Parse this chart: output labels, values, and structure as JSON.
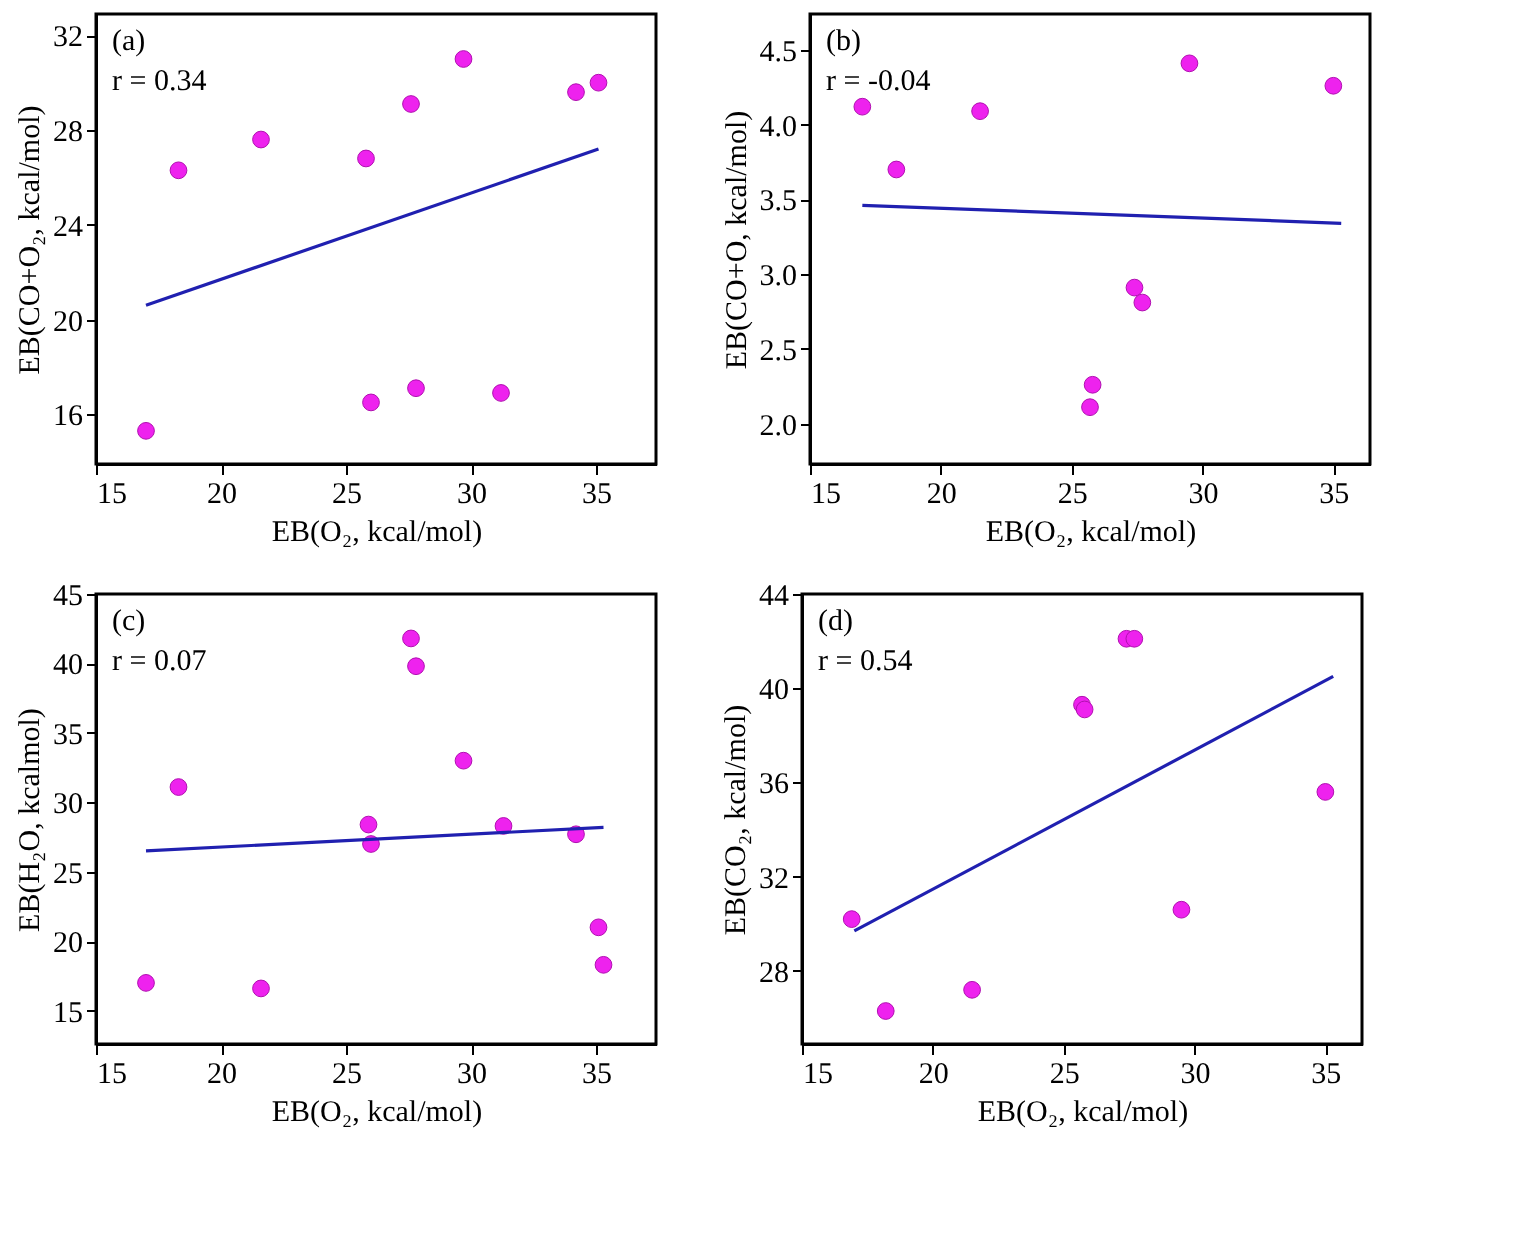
{
  "chart_data": [
    {
      "type": "scatter",
      "xlabel": "EB(O₂, kcal/mol)",
      "ylabel": "EB(CO+O₂, kcal/mol)",
      "annotations": [
        "(a)",
        "r = 0.34"
      ],
      "xlim": [
        15,
        37.4
      ],
      "ylim": [
        13.9,
        32.9
      ],
      "xticks": [
        15,
        20,
        25,
        30,
        35
      ],
      "yticks": [
        16,
        20,
        24,
        28,
        32
      ],
      "grid": false,
      "series": [
        {
          "marker": "circle",
          "color": "#ee22ee",
          "x": [
            17.0,
            18.3,
            21.6,
            25.8,
            27.6,
            29.7,
            34.2,
            35.1,
            26.0,
            27.8,
            31.2
          ],
          "values": [
            15.3,
            26.3,
            27.6,
            26.8,
            29.1,
            31.0,
            29.6,
            30.0,
            16.5,
            17.1,
            16.9
          ]
        },
        {
          "type": "line",
          "marker": "none",
          "color": "#2020b0",
          "x": [
            17.0,
            35.1
          ],
          "values": [
            20.6,
            27.2
          ]
        }
      ]
    },
    {
      "type": "scatter",
      "xlabel": "EB(O₂, kcal/mol)",
      "ylabel": "EB(CO+O, kcal/mol)",
      "annotations": [
        "(b)",
        "r = -0.04"
      ],
      "xlim": [
        15,
        36.4
      ],
      "ylim": [
        1.73,
        4.74
      ],
      "xticks": [
        15,
        20,
        25,
        30,
        35
      ],
      "yticks": [
        {
          "value": 2,
          "label": "2.0"
        },
        2.5,
        {
          "value": 3,
          "label": "3.0"
        },
        3.5,
        {
          "value": 4,
          "label": "4.0"
        },
        4.5
      ],
      "grid": false,
      "series": [
        {
          "marker": "circle",
          "color": "#ee22ee",
          "x": [
            17.0,
            18.3,
            21.5,
            29.5,
            35.0,
            27.4,
            27.7,
            25.8,
            25.7
          ],
          "values": [
            4.12,
            3.7,
            4.09,
            4.41,
            4.26,
            2.91,
            2.81,
            2.26,
            2.11
          ]
        },
        {
          "type": "line",
          "marker": "none",
          "color": "#2020b0",
          "x": [
            17.0,
            35.3
          ],
          "values": [
            3.46,
            3.34
          ]
        }
      ]
    },
    {
      "type": "scatter",
      "xlabel": "EB(O₂, kcal/mol)",
      "ylabel": "EB(H₂O, kcalmol)",
      "annotations": [
        "(c)",
        "r = 0.07"
      ],
      "xlim": [
        15,
        37.4
      ],
      "ylim": [
        12.6,
        45
      ],
      "xticks": [
        15,
        20,
        25,
        30,
        35
      ],
      "yticks": [
        15,
        20,
        25,
        30,
        35,
        40,
        45
      ],
      "grid": false,
      "series": [
        {
          "marker": "circle",
          "color": "#ee22ee",
          "x": [
            17.0,
            18.3,
            21.6,
            25.9,
            26.0,
            27.6,
            27.8,
            29.7,
            31.3,
            34.2,
            35.1,
            35.3
          ],
          "values": [
            17.0,
            31.1,
            16.6,
            28.4,
            27.0,
            41.8,
            39.8,
            33.0,
            28.3,
            27.7,
            21.0,
            18.3
          ]
        },
        {
          "type": "line",
          "marker": "none",
          "color": "#2020b0",
          "x": [
            17.0,
            35.3
          ],
          "values": [
            26.5,
            28.2
          ]
        }
      ]
    },
    {
      "type": "scatter",
      "xlabel": "EB(O₂, kcal/mol)",
      "ylabel": "EB(CO₂, kcal/mol)",
      "annotations": [
        "(d)",
        "r = 0.54"
      ],
      "xlim": [
        15,
        36.4
      ],
      "ylim": [
        24.9,
        44
      ],
      "xticks": [
        15,
        20,
        25,
        30,
        35
      ],
      "yticks": [
        28,
        32,
        36,
        40,
        44
      ],
      "grid": false,
      "series": [
        {
          "marker": "circle",
          "color": "#ee22ee",
          "x": [
            16.9,
            18.2,
            21.5,
            25.7,
            25.8,
            27.4,
            27.7,
            29.5,
            35.0
          ],
          "values": [
            30.2,
            26.3,
            27.2,
            39.3,
            39.1,
            42.1,
            42.1,
            30.6,
            35.6
          ]
        },
        {
          "type": "line",
          "marker": "none",
          "color": "#2020b0",
          "x": [
            17.0,
            35.3
          ],
          "values": [
            29.7,
            40.5
          ]
        }
      ]
    }
  ]
}
